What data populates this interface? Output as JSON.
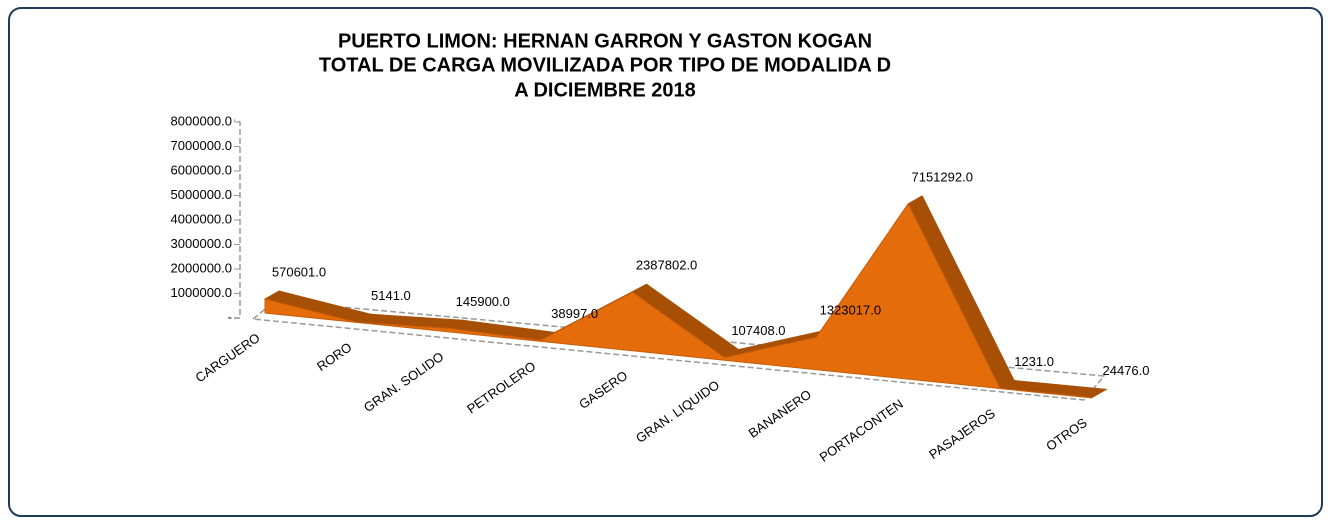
{
  "chart_data": {
    "type": "area3d",
    "title": [
      "PUERTO LIMON: HERNAN GARRON Y GASTON KOGAN",
      "TOTAL DE CARGA MOVILIZADA POR  TIPO DE MODALIDA D",
      "A DICIEMBRE 2018"
    ],
    "categories": [
      "CARGUERO",
      "RORO",
      "GRAN. SOLIDO",
      "PETROLERO",
      "GASERO",
      "GRAN. LIQUIDO",
      "BANANERO",
      "PORTACONTEN",
      "PASAJEROS",
      "OTROS"
    ],
    "values": [
      570601,
      5141,
      145900,
      38997,
      2387802,
      107408,
      1323017,
      7151292,
      1231,
      24476
    ],
    "value_labels": [
      "570601.0",
      "5141.0",
      "145900.0",
      "38997.0",
      "2387802.0",
      "107408.0",
      "1323017.0",
      "7151292.0",
      "1231.0",
      "24476.0"
    ],
    "color": "#e46c0a",
    "ylim": [
      0,
      8000000
    ],
    "yticks": [
      {
        "value": 0,
        "label": "-"
      },
      {
        "value": 1000000,
        "label": "1000000.0"
      },
      {
        "value": 2000000,
        "label": "2000000.0"
      },
      {
        "value": 3000000,
        "label": "3000000.0"
      },
      {
        "value": 4000000,
        "label": "4000000.0"
      },
      {
        "value": 5000000,
        "label": "5000000.0"
      },
      {
        "value": 6000000,
        "label": "6000000.0"
      },
      {
        "value": 7000000,
        "label": "7000000.0"
      },
      {
        "value": 8000000,
        "label": "8000000.0"
      }
    ],
    "grid": false
  }
}
